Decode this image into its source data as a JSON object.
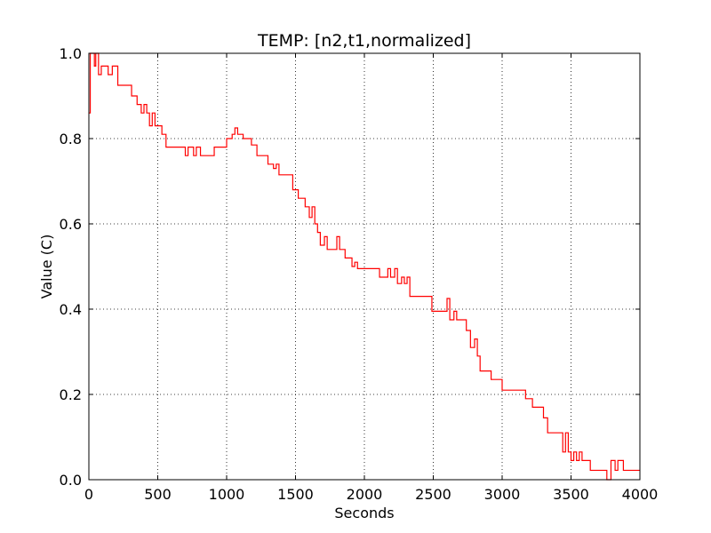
{
  "chart_data": {
    "type": "line",
    "title": "TEMP: [n2,t1,normalized]",
    "xlabel": "Seconds",
    "ylabel": "Value (C)",
    "xlim": [
      0,
      4000
    ],
    "ylim": [
      0.0,
      1.0
    ],
    "x_ticks": [
      0,
      500,
      1000,
      1500,
      2000,
      2500,
      3000,
      3500,
      4000
    ],
    "x_tick_labels": [
      "0",
      "500",
      "1000",
      "1500",
      "2000",
      "2500",
      "3000",
      "3500",
      "4000"
    ],
    "y_ticks": [
      0.0,
      0.2,
      0.4,
      0.6,
      0.8,
      1.0
    ],
    "y_tick_labels": [
      "0.0",
      "0.2",
      "0.4",
      "0.6",
      "0.8",
      "1.0"
    ],
    "grid": true,
    "grid_style": "dotted",
    "line_style": "step",
    "series": [
      {
        "color": "#ff0000",
        "points": [
          [
            0,
            0.86
          ],
          [
            10,
            1.0
          ],
          [
            40,
            0.97
          ],
          [
            50,
            1.0
          ],
          [
            70,
            0.95
          ],
          [
            90,
            0.97
          ],
          [
            140,
            0.95
          ],
          [
            170,
            0.97
          ],
          [
            210,
            0.925
          ],
          [
            310,
            0.9
          ],
          [
            350,
            0.88
          ],
          [
            380,
            0.86
          ],
          [
            400,
            0.88
          ],
          [
            420,
            0.86
          ],
          [
            440,
            0.83
          ],
          [
            460,
            0.86
          ],
          [
            480,
            0.83
          ],
          [
            530,
            0.81
          ],
          [
            560,
            0.78
          ],
          [
            700,
            0.76
          ],
          [
            720,
            0.78
          ],
          [
            760,
            0.76
          ],
          [
            780,
            0.78
          ],
          [
            810,
            0.76
          ],
          [
            910,
            0.78
          ],
          [
            1000,
            0.8
          ],
          [
            1040,
            0.81
          ],
          [
            1060,
            0.825
          ],
          [
            1080,
            0.81
          ],
          [
            1120,
            0.8
          ],
          [
            1180,
            0.785
          ],
          [
            1220,
            0.76
          ],
          [
            1300,
            0.74
          ],
          [
            1340,
            0.73
          ],
          [
            1360,
            0.74
          ],
          [
            1380,
            0.715
          ],
          [
            1480,
            0.68
          ],
          [
            1520,
            0.66
          ],
          [
            1570,
            0.64
          ],
          [
            1600,
            0.615
          ],
          [
            1620,
            0.64
          ],
          [
            1640,
            0.6
          ],
          [
            1660,
            0.58
          ],
          [
            1680,
            0.55
          ],
          [
            1710,
            0.57
          ],
          [
            1730,
            0.54
          ],
          [
            1800,
            0.57
          ],
          [
            1820,
            0.54
          ],
          [
            1860,
            0.52
          ],
          [
            1910,
            0.5
          ],
          [
            1930,
            0.51
          ],
          [
            1950,
            0.495
          ],
          [
            2110,
            0.475
          ],
          [
            2170,
            0.495
          ],
          [
            2190,
            0.475
          ],
          [
            2220,
            0.495
          ],
          [
            2240,
            0.46
          ],
          [
            2270,
            0.475
          ],
          [
            2290,
            0.46
          ],
          [
            2310,
            0.475
          ],
          [
            2330,
            0.43
          ],
          [
            2490,
            0.395
          ],
          [
            2600,
            0.425
          ],
          [
            2620,
            0.375
          ],
          [
            2650,
            0.395
          ],
          [
            2670,
            0.375
          ],
          [
            2740,
            0.35
          ],
          [
            2770,
            0.31
          ],
          [
            2800,
            0.33
          ],
          [
            2820,
            0.29
          ],
          [
            2840,
            0.255
          ],
          [
            2920,
            0.235
          ],
          [
            3000,
            0.21
          ],
          [
            3170,
            0.19
          ],
          [
            3220,
            0.17
          ],
          [
            3300,
            0.145
          ],
          [
            3330,
            0.11
          ],
          [
            3440,
            0.065
          ],
          [
            3460,
            0.11
          ],
          [
            3480,
            0.065
          ],
          [
            3500,
            0.045
          ],
          [
            3520,
            0.065
          ],
          [
            3540,
            0.045
          ],
          [
            3560,
            0.065
          ],
          [
            3580,
            0.045
          ],
          [
            3640,
            0.022
          ],
          [
            3740,
            0.022
          ],
          [
            3760,
            0.0
          ],
          [
            3790,
            0.045
          ],
          [
            3820,
            0.022
          ],
          [
            3840,
            0.045
          ],
          [
            3880,
            0.022
          ],
          [
            4000,
            0.022
          ]
        ]
      }
    ]
  }
}
